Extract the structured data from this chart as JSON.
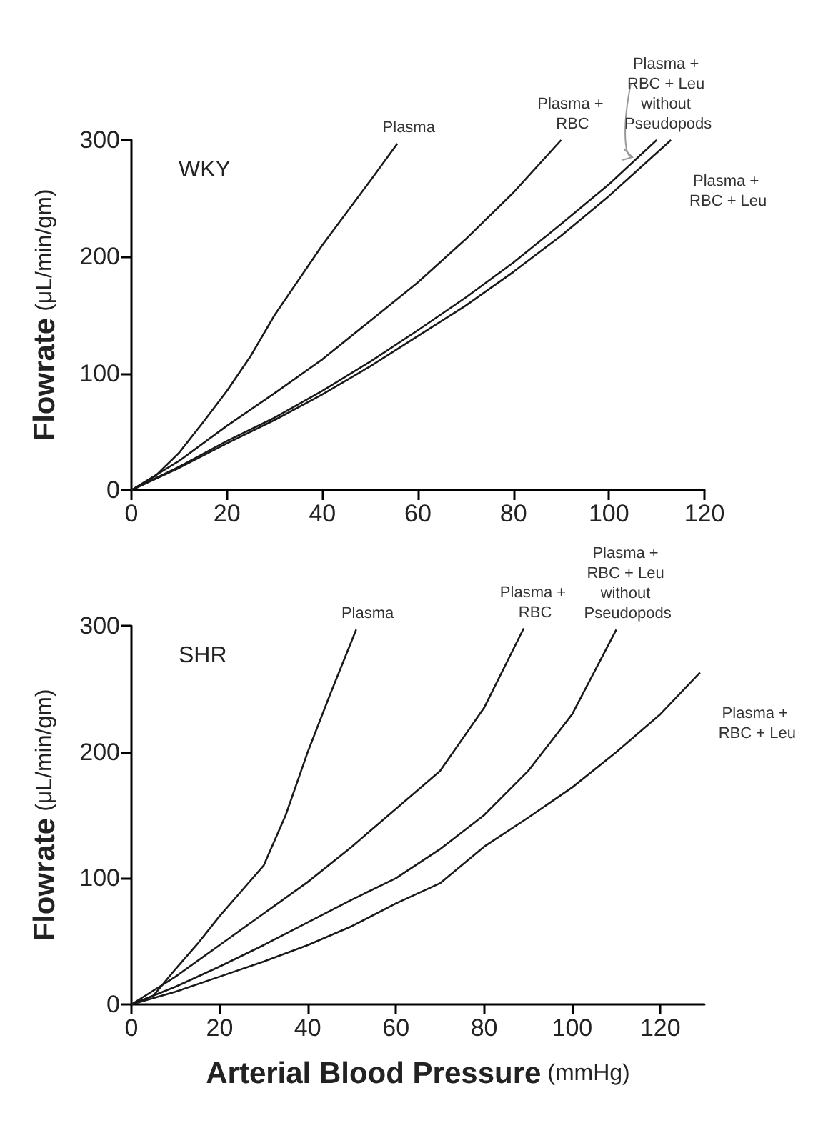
{
  "chart_data": [
    {
      "type": "line",
      "title": "WKY",
      "ylabel": "Flowrate (μL/min/gm)",
      "xlim": [
        0,
        120
      ],
      "xticks": [
        0,
        20,
        40,
        60,
        80,
        100,
        120
      ],
      "ylim": [
        0,
        300
      ],
      "yticks": [
        0,
        100,
        200,
        300
      ],
      "grid": false,
      "legend": false,
      "marker": "none",
      "line_style": "solid",
      "series": [
        {
          "name": "Plasma",
          "color": "#1a1a1a",
          "x": [
            0,
            5,
            10,
            15,
            20,
            25,
            30,
            40,
            50,
            55.7
          ],
          "values": [
            0,
            12,
            32,
            58,
            85,
            115,
            150,
            210,
            265,
            297
          ]
        },
        {
          "name": "Plasma + RBC",
          "color": "#1a1a1a",
          "x": [
            0,
            10,
            20,
            30,
            40,
            50,
            60,
            70,
            80,
            90
          ],
          "values": [
            0,
            25,
            55,
            83,
            112,
            145,
            178,
            215,
            255,
            300
          ]
        },
        {
          "name": "Plasma + RBC + Leu without Pseudopods",
          "color": "#1a1a1a",
          "x": [
            0,
            10,
            20,
            30,
            40,
            50,
            60,
            70,
            80,
            90,
            100,
            110
          ],
          "values": [
            0,
            20,
            42,
            62,
            85,
            110,
            137,
            165,
            195,
            228,
            262,
            300
          ]
        },
        {
          "name": "Plasma + RBC + Leu",
          "color": "#1a1a1a",
          "x": [
            0,
            10,
            20,
            30,
            40,
            50,
            60,
            70,
            80,
            90,
            100,
            113
          ],
          "values": [
            0,
            19,
            40,
            60,
            82,
            106,
            132,
            158,
            187,
            218,
            252,
            300
          ]
        }
      ]
    },
    {
      "type": "line",
      "title": "SHR",
      "xlabel": "Arterial Blood Pressure (mmHg)",
      "ylabel": "Flowrate (μL/min/gm)",
      "xlim": [
        0,
        130
      ],
      "xticks": [
        0,
        20,
        40,
        60,
        80,
        100,
        120
      ],
      "ylim": [
        0,
        300
      ],
      "yticks": [
        0,
        100,
        200,
        300
      ],
      "grid": false,
      "legend": false,
      "marker": "none",
      "line_style": "solid",
      "series": [
        {
          "name": "Plasma",
          "color": "#1a1a1a",
          "x": [
            0,
            5,
            10,
            15,
            20,
            25,
            30,
            35,
            40,
            45,
            51
          ],
          "values": [
            0,
            7,
            28,
            48,
            70,
            90,
            110,
            150,
            200,
            245,
            297
          ]
        },
        {
          "name": "Plasma + RBC",
          "color": "#1a1a1a",
          "x": [
            0,
            10,
            20,
            30,
            40,
            50,
            60,
            70,
            80,
            89
          ],
          "values": [
            0,
            22,
            47,
            72,
            97,
            125,
            155,
            185,
            235,
            298
          ]
        },
        {
          "name": "Plasma + RBC + Leu without Pseudopods",
          "color": "#1a1a1a",
          "x": [
            0,
            10,
            20,
            30,
            40,
            50,
            60,
            70,
            80,
            90,
            100,
            110
          ],
          "values": [
            0,
            14,
            30,
            47,
            65,
            83,
            100,
            123,
            150,
            185,
            230,
            297
          ]
        },
        {
          "name": "Plasma + RBC + Leu",
          "color": "#1a1a1a",
          "x": [
            0,
            10,
            20,
            30,
            40,
            50,
            60,
            70,
            80,
            90,
            100,
            110,
            120,
            129
          ],
          "values": [
            0,
            10,
            22,
            34,
            47,
            62,
            80,
            96,
            125,
            148,
            172,
            200,
            230,
            263
          ]
        }
      ]
    }
  ]
}
